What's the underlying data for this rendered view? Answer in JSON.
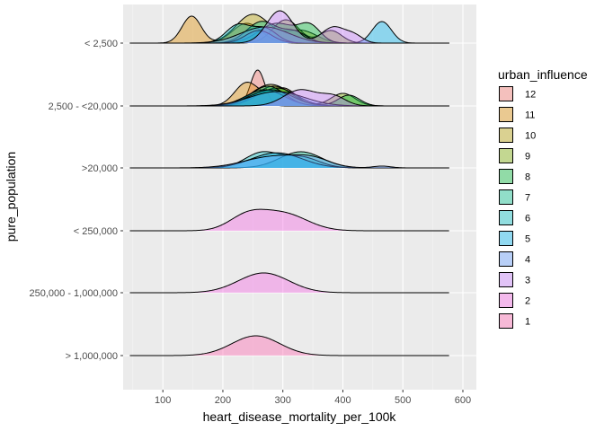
{
  "chart_data": {
    "type": "ridgeline",
    "xlabel": "heart_disease_mortality_per_100k",
    "ylabel": "pure_population",
    "xlim": [
      45,
      580
    ],
    "x_ticks": [
      100,
      200,
      300,
      400,
      500,
      600
    ],
    "categories": [
      "< 2,500",
      "2,500 - <20,000",
      ">20,000",
      "< 250,000",
      "250,000 - 1,000,000",
      "> 1,000,000"
    ],
    "legend": {
      "title": "urban_influence",
      "position": "right",
      "items": [
        {
          "label": "12",
          "color": "#F8766D"
        },
        {
          "label": "11",
          "color": "#DE8C00"
        },
        {
          "label": "10",
          "color": "#B79F00"
        },
        {
          "label": "9",
          "color": "#7CAE00"
        },
        {
          "label": "8",
          "color": "#00BA38"
        },
        {
          "label": "7",
          "color": "#00C08B"
        },
        {
          "label": "6",
          "color": "#00BFC4"
        },
        {
          "label": "5",
          "color": "#00B4F0"
        },
        {
          "label": "4",
          "color": "#619CFF"
        },
        {
          "label": "3",
          "color": "#C77CFF"
        },
        {
          "label": "2",
          "color": "#F564E3"
        },
        {
          "label": "1",
          "color": "#FF64B0"
        }
      ]
    },
    "series": [
      {
        "row": 0,
        "group": "11",
        "peaks": [
          [
            148,
            16,
            0.75
          ],
          [
            240,
            24,
            0.55
          ]
        ]
      },
      {
        "row": 0,
        "group": "10",
        "peaks": [
          [
            250,
            28,
            0.8
          ],
          [
            330,
            26,
            0.35
          ]
        ]
      },
      {
        "row": 0,
        "group": "9",
        "peaks": [
          [
            305,
            22,
            0.65
          ],
          [
            380,
            18,
            0.35
          ]
        ]
      },
      {
        "row": 0,
        "group": "8",
        "peaks": [
          [
            290,
            30,
            0.55
          ],
          [
            345,
            18,
            0.45
          ]
        ]
      },
      {
        "row": 0,
        "group": "7",
        "peaks": [
          [
            265,
            25,
            0.6
          ],
          [
            320,
            20,
            0.3
          ]
        ]
      },
      {
        "row": 0,
        "group": "6",
        "peaks": [
          [
            225,
            20,
            0.5
          ],
          [
            270,
            20,
            0.4
          ]
        ]
      },
      {
        "row": 0,
        "group": "5",
        "peaks": [
          [
            260,
            22,
            0.35
          ],
          [
            465,
            16,
            0.6
          ]
        ]
      },
      {
        "row": 0,
        "group": "4",
        "peaks": [
          [
            270,
            40,
            0.45
          ]
        ]
      },
      {
        "row": 0,
        "group": "3",
        "peaks": [
          [
            295,
            22,
            0.9
          ],
          [
            385,
            20,
            0.45
          ],
          [
            420,
            14,
            0.18
          ]
        ]
      },
      {
        "row": 1,
        "group": "12",
        "peaks": [
          [
            258,
            12,
            1.0
          ]
        ]
      },
      {
        "row": 1,
        "group": "11",
        "peaks": [
          [
            240,
            20,
            0.65
          ],
          [
            300,
            22,
            0.5
          ]
        ]
      },
      {
        "row": 1,
        "group": "10",
        "peaks": [
          [
            280,
            32,
            0.6
          ]
        ]
      },
      {
        "row": 1,
        "group": "9",
        "peaks": [
          [
            285,
            30,
            0.55
          ],
          [
            400,
            20,
            0.35
          ]
        ]
      },
      {
        "row": 1,
        "group": "8",
        "peaks": [
          [
            290,
            32,
            0.5
          ],
          [
            410,
            18,
            0.3
          ]
        ]
      },
      {
        "row": 1,
        "group": "7",
        "peaks": [
          [
            275,
            28,
            0.55
          ]
        ]
      },
      {
        "row": 1,
        "group": "6",
        "peaks": [
          [
            270,
            32,
            0.45
          ]
        ]
      },
      {
        "row": 1,
        "group": "5",
        "peaks": [
          [
            280,
            35,
            0.45
          ]
        ]
      },
      {
        "row": 1,
        "group": "4",
        "peaks": [
          [
            290,
            45,
            0.4
          ]
        ]
      },
      {
        "row": 1,
        "group": "3",
        "peaks": [
          [
            330,
            28,
            0.45
          ],
          [
            385,
            20,
            0.25
          ]
        ]
      },
      {
        "row": 2,
        "group": "7",
        "peaks": [
          [
            330,
            35,
            0.45
          ]
        ]
      },
      {
        "row": 2,
        "group": "6",
        "peaks": [
          [
            265,
            28,
            0.42
          ],
          [
            330,
            30,
            0.3
          ]
        ]
      },
      {
        "row": 2,
        "group": "5",
        "peaks": [
          [
            290,
            42,
            0.42
          ]
        ]
      },
      {
        "row": 2,
        "group": "4",
        "peaks": [
          [
            285,
            48,
            0.32
          ],
          [
            350,
            30,
            0.2
          ],
          [
            465,
            15,
            0.05
          ]
        ]
      },
      {
        "row": 3,
        "group": "2",
        "peaks": [
          [
            240,
            30,
            0.38
          ],
          [
            300,
            40,
            0.48
          ]
        ]
      },
      {
        "row": 4,
        "group": "2",
        "peaks": [
          [
            268,
            42,
            0.55
          ]
        ]
      },
      {
        "row": 5,
        "group": "1",
        "peaks": [
          [
            255,
            40,
            0.55
          ]
        ]
      }
    ]
  }
}
